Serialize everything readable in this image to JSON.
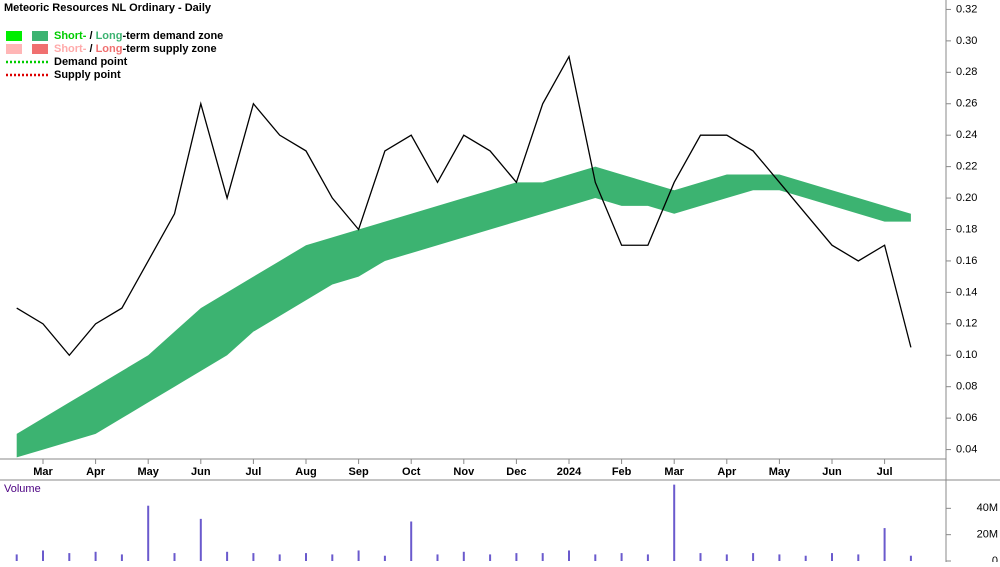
{
  "chart_data": [
    {
      "type": "price",
      "title": "Meteoric Resources NL Ordinary - Daily",
      "categories": [
        null,
        "Mar",
        null,
        "Apr",
        null,
        "May",
        null,
        "Jun",
        null,
        "Jul",
        null,
        "Aug",
        null,
        "Sep",
        null,
        "Oct",
        null,
        "Nov",
        null,
        "Dec",
        null,
        "2024",
        null,
        "Feb",
        null,
        "Mar",
        null,
        "Apr",
        null,
        "May",
        null,
        "Jun",
        null,
        "Jul",
        null
      ],
      "series": [
        {
          "kind": "band",
          "color": "#3cb371",
          "values": [
            0.05,
            0.06,
            0.07,
            0.08,
            0.09,
            0.1,
            0.115,
            0.13,
            0.14,
            0.15,
            0.16,
            0.17,
            0.175,
            0.18,
            0.185,
            0.19,
            0.195,
            0.2,
            0.205,
            0.21,
            0.21,
            0.215,
            0.22,
            0.215,
            0.21,
            0.205,
            0.21,
            0.215,
            0.215,
            0.215,
            0.21,
            0.205,
            0.2,
            0.195,
            0.19
          ],
          "lower": [
            0.035,
            0.04,
            0.045,
            0.05,
            0.06,
            0.07,
            0.08,
            0.09,
            0.1,
            0.115,
            0.125,
            0.135,
            0.145,
            0.15,
            0.16,
            0.165,
            0.17,
            0.175,
            0.18,
            0.185,
            0.19,
            0.195,
            0.2,
            0.195,
            0.195,
            0.19,
            0.195,
            0.2,
            0.205,
            0.205,
            0.2,
            0.195,
            0.19,
            0.185,
            0.185
          ]
        },
        {
          "kind": "line",
          "color": "#000000",
          "values": [
            0.13,
            0.12,
            0.1,
            0.12,
            0.13,
            0.16,
            0.19,
            0.26,
            0.2,
            0.26,
            0.24,
            0.23,
            0.2,
            0.18,
            0.23,
            0.24,
            0.21,
            0.24,
            0.23,
            0.21,
            0.26,
            0.29,
            0.21,
            0.17,
            0.17,
            0.21,
            0.24,
            0.24,
            0.23,
            0.21,
            0.19,
            0.17,
            0.16,
            0.17,
            0.105
          ]
        }
      ],
      "ylim": [
        0.034,
        0.326
      ],
      "yticks": [
        {
          "value": 0.04,
          "label": "0.04"
        },
        0.06,
        0.08,
        {
          "value": 0.1,
          "label": "0.10"
        },
        0.12,
        0.14,
        0.16,
        0.18,
        {
          "value": 0.2,
          "label": "0.20"
        },
        0.22,
        0.24,
        0.26,
        0.28,
        {
          "value": 0.3,
          "label": "0.30"
        },
        0.32
      ],
      "legend": [
        {
          "swatches": [
            "#00ee00",
            "#3cb371"
          ],
          "parts": [
            {
              "text": "Short-",
              "color": "#00cc00"
            },
            {
              "text": " / "
            },
            {
              "text": "Long",
              "color": "#3cb371"
            },
            {
              "text": "-term demand zone"
            }
          ]
        },
        {
          "swatches": [
            "#ffb6b6",
            "#f07070"
          ],
          "parts": [
            {
              "text": "Short-",
              "color": "#ffaaaa"
            },
            {
              "text": " / "
            },
            {
              "text": "Long",
              "color": "#f07070"
            },
            {
              "text": "-term supply zone"
            }
          ]
        },
        {
          "line": "#00cc00",
          "parts": [
            {
              "text": "Demand point"
            }
          ]
        },
        {
          "line": "#dd0000",
          "parts": [
            {
              "text": "Supply point"
            }
          ]
        }
      ]
    },
    {
      "type": "volume",
      "title": "Volume",
      "color": "#6a5acd",
      "values": [
        5000000,
        8000000,
        6000000,
        7000000,
        5000000,
        42000000,
        6000000,
        32000000,
        7000000,
        6000000,
        5000000,
        6000000,
        5000000,
        8000000,
        4000000,
        30000000,
        5000000,
        7000000,
        5000000,
        6000000,
        6000000,
        8000000,
        5000000,
        6000000,
        5000000,
        58000000,
        6000000,
        5000000,
        6000000,
        5000000,
        4000000,
        6000000,
        5000000,
        25000000,
        4000000
      ],
      "ylim": [
        0,
        60000000
      ],
      "yticks": [
        0,
        {
          "value": 20000000,
          "label": "20M"
        },
        {
          "value": 40000000,
          "label": "40M"
        }
      ]
    }
  ]
}
